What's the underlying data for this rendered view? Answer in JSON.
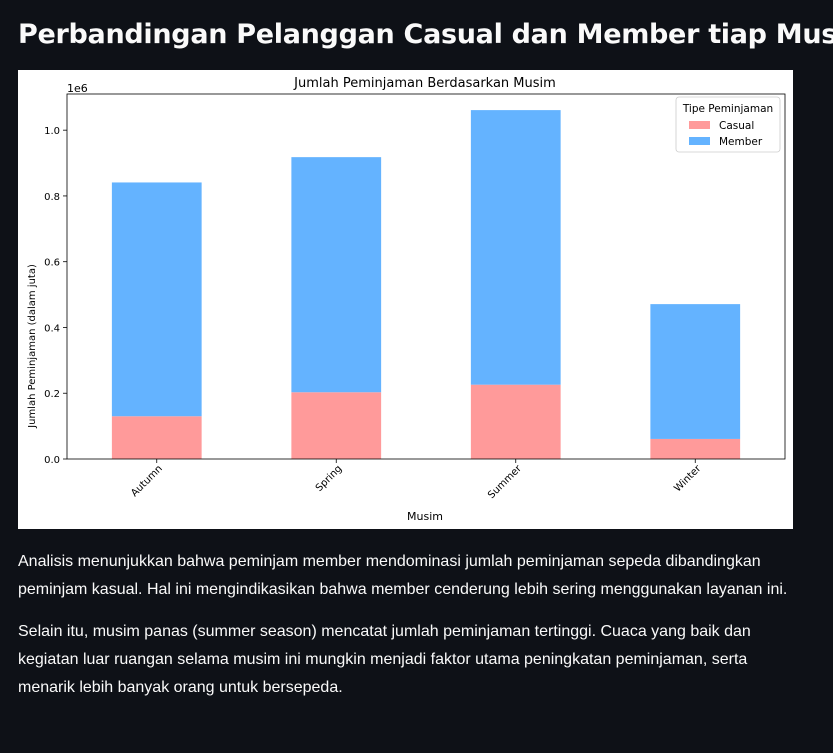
{
  "page": {
    "heading": "Perbandingan Pelanggan Casual dan Member tiap Musim"
  },
  "chart_data": {
    "type": "bar",
    "stacked": true,
    "title": "Jumlah Peminjaman Berdasarkan Musim",
    "xlabel": "Musim",
    "ylabel": "Jumlah Peminjaman (dalam juta)",
    "y_offset_text": "1e6",
    "categories": [
      "Autumn",
      "Spring",
      "Summer",
      "Winter"
    ],
    "series": [
      {
        "name": "Casual",
        "color": "#ff9a9a",
        "values": [
          130000,
          203000,
          226000,
          61000
        ]
      },
      {
        "name": "Member",
        "color": "#64b3ff",
        "values": [
          711000,
          715000,
          835000,
          410000
        ]
      }
    ],
    "ylim": [
      0,
      1110000
    ],
    "yticks": [
      0,
      200000,
      400000,
      600000,
      800000,
      1000000
    ],
    "ytick_labels": [
      "0.0",
      "0.2",
      "0.4",
      "0.6",
      "0.8",
      "1.0"
    ],
    "legend": {
      "title": "Tipe Peminjaman",
      "placement": "top-right"
    },
    "grid": false
  },
  "analysis": {
    "paragraph_1": "Analisis menunjukkan bahwa peminjam member mendominasi jumlah peminjaman sepeda dibandingkan peminjam kasual. Hal ini mengindikasikan bahwa member cenderung lebih sering menggunakan layanan ini.",
    "paragraph_2": "Selain itu, musim panas (summer season) mencatat jumlah peminjaman tertinggi. Cuaca yang baik dan kegiatan luar ruangan selama musim ini mungkin menjadi faktor utama peningkatan peminjaman, serta menarik lebih banyak orang untuk bersepeda."
  }
}
